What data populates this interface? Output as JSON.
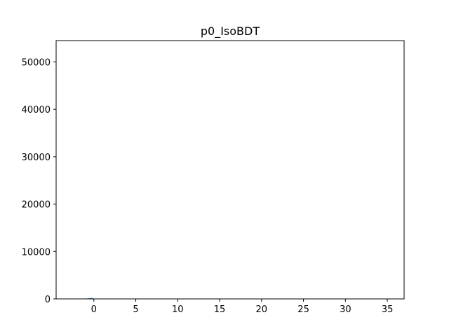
{
  "chart_data": {
    "type": "bar",
    "title": "p0_IsoBDT",
    "xlabel": "",
    "ylabel": "",
    "xlim": [
      -4.5,
      37
    ],
    "ylim": [
      0,
      54500
    ],
    "xticks": [
      0,
      5,
      10,
      15,
      20,
      25,
      30,
      35
    ],
    "xtick_labels": [
      "0",
      "5",
      "10",
      "15",
      "20",
      "25",
      "30",
      "35"
    ],
    "yticks": [
      0,
      10000,
      20000,
      30000,
      40000,
      50000
    ],
    "ytick_labels": [
      "0",
      "10000",
      "20000",
      "30000",
      "40000",
      "50000"
    ],
    "grid": false,
    "bar_color": "#1f77b4",
    "bins": [
      {
        "x0": -1.1,
        "x1": -0.9,
        "value": 60
      },
      {
        "x0": -0.9,
        "x1": -0.7,
        "value": 90
      },
      {
        "x0": -0.7,
        "x1": -0.5,
        "value": 120
      },
      {
        "x0": -0.5,
        "x1": -0.3,
        "value": 150
      },
      {
        "x0": -0.3,
        "x1": -0.1,
        "value": 180
      }
    ]
  }
}
